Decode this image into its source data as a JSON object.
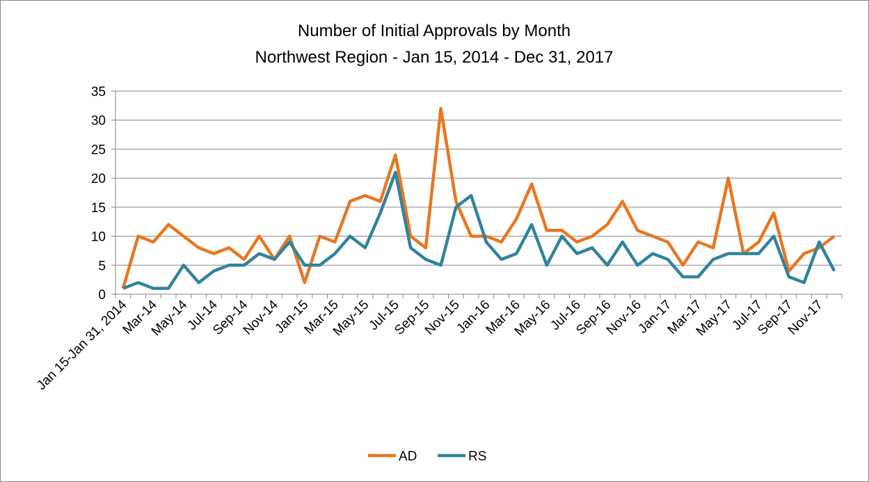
{
  "chart_data": {
    "type": "line",
    "title": "Number of Initial Approvals by Month",
    "subtitle": "Northwest Region - Jan 15, 2014 - Dec 31, 2017",
    "categories": [
      "Jan 15-Jan 31, 2014",
      null,
      "Mar-14",
      null,
      "May-14",
      null,
      "Jul-14",
      null,
      "Sep-14",
      null,
      "Nov-14",
      null,
      "Jan-15",
      null,
      "Mar-15",
      null,
      "May-15",
      null,
      "Jul-15",
      null,
      "Sep-15",
      null,
      "Nov-15",
      null,
      "Jan-16",
      null,
      "Mar-16",
      null,
      "May-16",
      null,
      "Jul-16",
      null,
      "Sep-16",
      null,
      "Nov-16",
      null,
      "Jan-17",
      null,
      "Mar-17",
      null,
      "May-17",
      null,
      "Jul-17",
      null,
      "Sep-17",
      null,
      "Nov-17",
      null
    ],
    "series": [
      {
        "name": "AD",
        "color": "#e87722",
        "values": [
          1,
          10,
          9,
          12,
          10,
          8,
          7,
          8,
          6,
          10,
          6,
          10,
          2,
          10,
          9,
          16,
          17,
          16,
          24,
          10,
          8,
          32,
          16,
          10,
          10,
          9,
          13,
          19,
          11,
          11,
          9,
          10,
          12,
          16,
          11,
          10,
          9,
          5,
          9,
          8,
          20,
          7,
          9,
          14,
          4,
          7,
          8,
          10
        ]
      },
      {
        "name": "RS",
        "color": "#31849b",
        "values": [
          1,
          2,
          1,
          1,
          5,
          2,
          4,
          5,
          5,
          7,
          6,
          9,
          5,
          5,
          7,
          10,
          8,
          14,
          21,
          8,
          6,
          5,
          15,
          17,
          9,
          6,
          7,
          12,
          5,
          10,
          7,
          8,
          5,
          9,
          5,
          7,
          6,
          3,
          3,
          6,
          7,
          7,
          7,
          10,
          3,
          2,
          9,
          4
        ]
      }
    ],
    "ylim": [
      0,
      35
    ],
    "yticks": [
      0,
      5,
      10,
      15,
      20,
      25,
      30,
      35
    ],
    "grid": true,
    "legend": "bottom"
  }
}
